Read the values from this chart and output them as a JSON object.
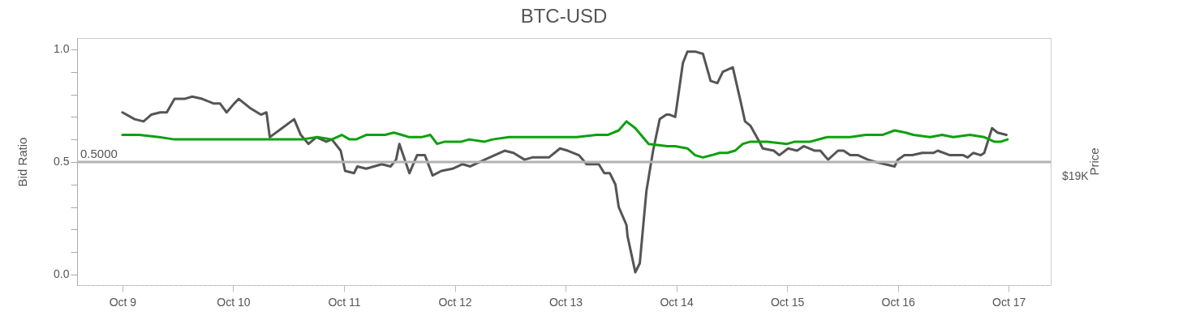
{
  "chart_data": {
    "type": "line",
    "title": "BTC-USD",
    "ylabel": "Bid Ratio",
    "y2label": "Price",
    "xlim": [
      "--10-08T14:10",
      "--10-17T09:07"
    ],
    "xticks": [
      {
        "value": "--10-09",
        "label": "Oct 9"
      },
      {
        "value": "--10-10",
        "label": "Oct 10"
      },
      {
        "value": "--10-11",
        "label": "Oct 11"
      },
      {
        "value": "--10-12",
        "label": "Oct 12"
      },
      {
        "value": "--10-13",
        "label": "Oct 13"
      },
      {
        "value": "--10-14",
        "label": "Oct 14"
      },
      {
        "value": "--10-15",
        "label": "Oct 15"
      },
      {
        "value": "--10-16",
        "label": "Oct 16"
      },
      {
        "value": "--10-17",
        "label": "Oct 17"
      }
    ],
    "ylim": [
      -0.047,
      1.05
    ],
    "yticks": [
      {
        "value": 0,
        "label": "0.0"
      },
      {
        "value": 0.1,
        "label": null
      },
      {
        "value": 0.2,
        "label": null
      },
      {
        "value": 0.3,
        "label": null
      },
      {
        "value": 0.4,
        "label": null
      },
      {
        "value": 0.5,
        "label": "0.5"
      },
      {
        "value": 0.6,
        "label": null
      },
      {
        "value": 0.7,
        "label": null
      },
      {
        "value": 0.8,
        "label": null
      },
      {
        "value": 0.9,
        "label": null
      },
      {
        "value": 1,
        "label": "1.0"
      }
    ],
    "annotations": [
      "$19K"
    ],
    "ref_lines": [
      {
        "axis": "y",
        "value": 0.5,
        "label": "0.5000",
        "color": "#b3b3b3"
      }
    ],
    "grid": false,
    "legend": false,
    "marker": "none",
    "line_style": "solid",
    "series": [
      {
        "color": "#555555",
        "x": [
          "--10-09T00:00",
          "--10-09T02:38",
          "--10-09T04:34",
          "--10-09T06:14",
          "--10-09T08:10",
          "--10-09T09:36",
          "--10-09T11:17",
          "--10-09T13:26",
          "--10-09T15:07",
          "--10-09T17:17",
          "--10-09T19:41",
          "--10-09T21:07",
          "--10-09T22:34",
          "--10-10T00:14",
          "--10-10T01:12",
          "--10-10T03:36",
          "--10-10T06:00",
          "--10-10T07:12",
          "--10-10T07:55",
          "--10-10T10:34",
          "--10-10T13:12",
          "--10-10T14:38",
          "--10-10T16:19",
          "--10-10T18:00",
          "--10-10T20:10",
          "--10-10T21:22",
          "--10-10T23:17",
          "--10-11T00:14",
          "--10-11T02:10",
          "--10-11T02:53",
          "--10-11T04:48",
          "--10-11T06:29",
          "--10-11T08:10",
          "--10-11T10:05",
          "--10-11T11:17",
          "--10-11T12:00",
          "--10-11T14:10",
          "--10-11T15:50",
          "--10-11T17:31",
          "--10-11T19:12",
          "--10-11T21:07",
          "--10-11T23:31",
          "--10-12T01:41",
          "--10-12T03:22",
          "--10-12T06:29",
          "--10-12T08:38",
          "--10-12T10:48",
          "--10-12T12:43",
          "--10-12T15:07",
          "--10-12T16:48",
          "--10-12T20:24",
          "--10-12T22:48",
          "--10-13T00:29",
          "--10-13T02:53",
          "--10-13T04:34",
          "--10-13T07:12",
          "--10-13T08:24",
          "--10-13T09:36",
          "--10-13T10:48",
          "--10-13T11:31",
          "--10-13T13:12",
          "--10-13T13:26",
          "--10-13T15:07",
          "--10-13T16:05",
          "--10-13T17:31",
          "--10-13T18:58",
          "--10-13T20:24",
          "--10-13T21:50",
          "--10-13T22:34",
          "--10-13T23:46",
          "--10-14T01:26",
          "--10-14T02:24",
          "--10-14T04:05",
          "--10-14T05:46",
          "--10-14T07:26",
          "--10-14T08:53",
          "--10-14T10:05",
          "--10-14T12:14",
          "--10-14T13:55",
          "--10-14T14:53",
          "--10-14T16:05",
          "--10-14T18:00",
          "--10-14T18:43",
          "--10-14T21:07",
          "--10-14T22:19",
          "--10-15T00:14",
          "--10-15T02:10",
          "--10-15T03:36",
          "--10-15T06:00",
          "--10-15T07:12",
          "--10-15T08:53",
          "--10-15T11:02",
          "--10-15T12:14",
          "--10-15T13:41",
          "--10-15T15:22",
          "--10-15T17:31",
          "--10-15T19:12",
          "--10-15T23:17",
          "--10-16T00:00",
          "--10-16T01:26",
          "--10-16T03:07",
          "--10-16T05:17",
          "--10-16T07:41",
          "--10-16T08:38",
          "--10-16T11:17",
          "--10-16T14:10",
          "--10-16T15:07",
          "--10-16T16:19",
          "--10-16T18:00",
          "--10-16T18:43",
          "--10-16T20:24",
          "--10-16T21:36",
          "--10-16T23:31"
        ],
        "values": [
          0.72,
          0.69,
          0.68,
          0.71,
          0.72,
          0.72,
          0.78,
          0.78,
          0.79,
          0.78,
          0.76,
          0.76,
          0.72,
          0.76,
          0.78,
          0.74,
          0.71,
          0.72,
          0.61,
          0.65,
          0.69,
          0.62,
          0.58,
          0.61,
          0.59,
          0.6,
          0.55,
          0.46,
          0.45,
          0.48,
          0.47,
          0.48,
          0.49,
          0.48,
          0.51,
          0.58,
          0.45,
          0.53,
          0.53,
          0.44,
          0.46,
          0.47,
          0.49,
          0.48,
          0.51,
          0.53,
          0.55,
          0.54,
          0.51,
          0.52,
          0.52,
          0.56,
          0.55,
          0.53,
          0.49,
          0.49,
          0.45,
          0.45,
          0.4,
          0.3,
          0.22,
          0.17,
          0.01,
          0.05,
          0.37,
          0.55,
          0.69,
          0.71,
          0.71,
          0.7,
          0.94,
          0.99,
          0.99,
          0.98,
          0.86,
          0.85,
          0.9,
          0.92,
          0.77,
          0.68,
          0.66,
          0.59,
          0.56,
          0.55,
          0.53,
          0.56,
          0.55,
          0.57,
          0.55,
          0.55,
          0.51,
          0.55,
          0.55,
          0.53,
          0.53,
          0.51,
          0.5,
          0.48,
          0.51,
          0.53,
          0.53,
          0.54,
          0.54,
          0.55,
          0.53,
          0.53,
          0.52,
          0.54,
          0.53,
          0.54,
          0.65,
          0.63,
          0.62
        ]
      },
      {
        "color": "#0da10d",
        "x": [
          "--10-09T00:00",
          "--10-09T03:36",
          "--10-09T07:55",
          "--10-09T11:17",
          "--10-09T15:36",
          "--10-09T19:55",
          "--10-09T23:31",
          "--10-10T02:53",
          "--10-10T07:12",
          "--10-10T10:34",
          "--10-10T14:53",
          "--10-10T18:14",
          "--10-10T21:22",
          "--10-10T23:31",
          "--10-11T01:12",
          "--10-11T02:38",
          "--10-11T04:48",
          "--10-11T07:12",
          "--10-11T08:53",
          "--10-11T10:48",
          "--10-11T12:29",
          "--10-11T14:10",
          "--10-11T16:48",
          "--10-11T18:43",
          "--10-11T20:10",
          "--10-11T21:50",
          "--10-12T01:26",
          "--10-12T03:07",
          "--10-12T06:29",
          "--10-12T08:10",
          "--10-12T11:46",
          "--10-12T16:48",
          "--10-12T22:05",
          "--10-13T02:24",
          "--10-13T06:43",
          "--10-13T09:07",
          "--10-13T11:31",
          "--10-13T13:12",
          "--10-13T15:07",
          "--10-13T18:00",
          "--10-13T22:05",
          "--10-13T23:46",
          "--10-14T02:24",
          "--10-14T04:05",
          "--10-14T05:46",
          "--10-14T07:41",
          "--10-14T09:22",
          "--10-14T11:02",
          "--10-14T12:43",
          "--10-14T14:24",
          "--10-14T16:05",
          "--10-14T19:41",
          "--10-15T00:00",
          "--10-15T01:41",
          "--10-15T05:02",
          "--10-15T08:38",
          "--10-15T13:41",
          "--10-15T17:02",
          "--10-15T20:38",
          "--10-15T23:17",
          "--10-16T01:41",
          "--10-16T03:22",
          "--10-16T06:58",
          "--10-16T09:36",
          "--10-16T12:00",
          "--10-16T15:36",
          "--10-16T18:43",
          "--10-16T20:53",
          "--10-16T22:19",
          "--10-16T23:46"
        ],
        "values": [
          0.62,
          0.62,
          0.61,
          0.6,
          0.6,
          0.6,
          0.6,
          0.6,
          0.6,
          0.6,
          0.6,
          0.61,
          0.6,
          0.62,
          0.6,
          0.6,
          0.62,
          0.62,
          0.62,
          0.63,
          0.62,
          0.61,
          0.61,
          0.62,
          0.58,
          0.59,
          0.59,
          0.6,
          0.59,
          0.6,
          0.61,
          0.61,
          0.61,
          0.61,
          0.62,
          0.62,
          0.64,
          0.68,
          0.65,
          0.58,
          0.57,
          0.57,
          0.56,
          0.53,
          0.52,
          0.53,
          0.54,
          0.54,
          0.55,
          0.58,
          0.59,
          0.59,
          0.58,
          0.59,
          0.59,
          0.61,
          0.61,
          0.62,
          0.62,
          0.64,
          0.63,
          0.62,
          0.61,
          0.62,
          0.61,
          0.62,
          0.61,
          0.59,
          0.59,
          0.6
        ]
      }
    ]
  }
}
